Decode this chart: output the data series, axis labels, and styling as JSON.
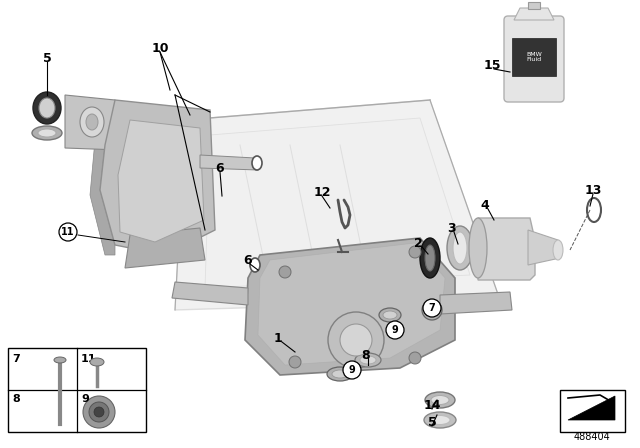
{
  "bg_color": "#ffffff",
  "fig_number": "488404",
  "labels_plain": [
    [
      "5",
      47,
      68
    ],
    [
      "10",
      155,
      55
    ],
    [
      "6",
      222,
      175
    ],
    [
      "11",
      70,
      215
    ],
    [
      "6",
      252,
      255
    ],
    [
      "1",
      283,
      330
    ],
    [
      "12",
      325,
      195
    ],
    [
      "2",
      422,
      248
    ],
    [
      "3",
      455,
      232
    ],
    [
      "4",
      488,
      205
    ],
    [
      "8",
      368,
      358
    ],
    [
      "13",
      590,
      195
    ],
    [
      "14",
      430,
      408
    ],
    [
      "5",
      430,
      425
    ],
    [
      "15",
      495,
      68
    ]
  ],
  "labels_circled": [
    [
      "11",
      70,
      230
    ],
    [
      "7",
      430,
      310
    ],
    [
      "9",
      405,
      332
    ],
    [
      "9",
      355,
      368
    ]
  ],
  "leader_lines": [
    [
      47,
      72,
      47,
      95
    ],
    [
      155,
      60,
      140,
      90
    ],
    [
      222,
      180,
      222,
      200
    ],
    [
      252,
      260,
      260,
      268
    ],
    [
      283,
      335,
      300,
      342
    ],
    [
      325,
      200,
      328,
      212
    ],
    [
      422,
      253,
      432,
      260
    ],
    [
      455,
      237,
      460,
      248
    ],
    [
      488,
      210,
      495,
      222
    ],
    [
      368,
      362,
      368,
      370
    ],
    [
      590,
      200,
      588,
      208
    ],
    [
      430,
      412,
      430,
      405
    ],
    [
      430,
      429,
      430,
      418
    ],
    [
      495,
      73,
      510,
      78
    ]
  ]
}
